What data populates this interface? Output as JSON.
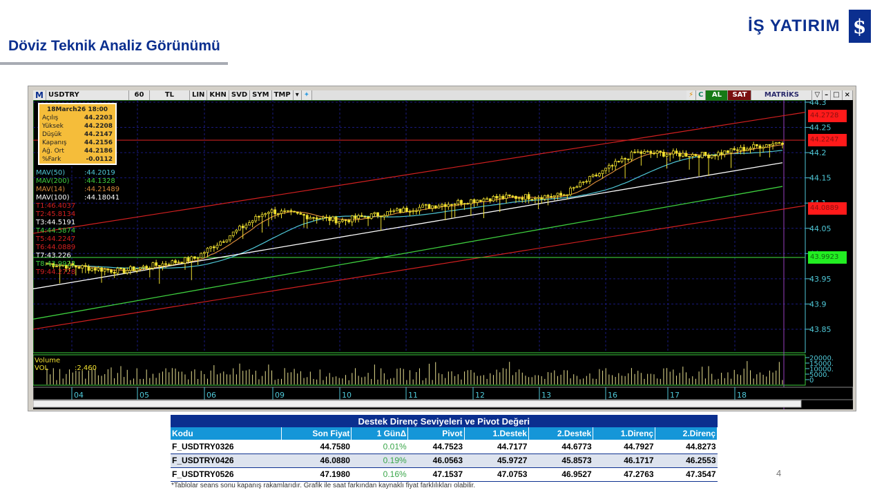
{
  "header": {
    "title": "Döviz Teknik Analiz Görünümü",
    "logo_text": "İŞ YATIRIM",
    "logo_mark": "$"
  },
  "toolbar": {
    "logo": "M",
    "symbol": "USDTRY",
    "period": "60",
    "currency": "TL",
    "buttons": [
      "LIN",
      "KHN",
      "SVD",
      "SYM",
      "TMP"
    ],
    "al": "AL",
    "sat": "SAT",
    "brand": "MATRİKS",
    "icons": [
      "lightning-icon",
      "refresh-icon",
      "twitter-icon",
      "dropdown-icon",
      "minimize-icon",
      "maximize-icon",
      "close-icon"
    ]
  },
  "infobox": {
    "date": "18March26 18:00",
    "rows": [
      [
        "Açılış",
        "44.2203"
      ],
      [
        "Yüksek",
        "44.2208"
      ],
      [
        "Düşük",
        "44.2147"
      ],
      [
        "Kapanış",
        "44.2156"
      ],
      [
        "Ağ. Ort",
        "44.2186"
      ],
      [
        "%Fark",
        "-0.0112"
      ]
    ]
  },
  "indicators": [
    {
      "label": "MAV(50)",
      "value": ":44.2019",
      "color": "#4fc8d8"
    },
    {
      "label": "MAV(200)",
      "value": ":44.1328",
      "color": "#3ecf3e"
    },
    {
      "label": "MAV(14)",
      "value": ":44.21489",
      "color": "#d88a3a"
    },
    {
      "label": "MAV(100)",
      "value": ":44.18041",
      "color": "#ffffff"
    },
    {
      "label": "T1:46.4037",
      "value": "",
      "color": "#d42020"
    },
    {
      "label": "T2:45.8134",
      "value": "",
      "color": "#d42020"
    },
    {
      "label": "T3:44.5191",
      "value": "",
      "color": "#ffffff"
    },
    {
      "label": "T4:44.5874",
      "value": "",
      "color": "#3ecf3e"
    },
    {
      "label": "T5:44.2247",
      "value": "",
      "color": "#d42020"
    },
    {
      "label": "T6:44.0889",
      "value": "",
      "color": "#d42020"
    },
    {
      "label": "T7:43.226",
      "value": "",
      "color": "#ffffff"
    },
    {
      "label": "T8:43.9923",
      "value": "",
      "color": "#3ecf3e"
    },
    {
      "label": "T9:44.2728",
      "value": "",
      "color": "#d42020"
    }
  ],
  "chart_data": {
    "type": "candlestick",
    "symbol": "USDTRY",
    "interval": "60",
    "ylim": [
      43.81,
      44.31
    ],
    "y_ticks": [
      "44.3",
      "44.25",
      "44.2",
      "44.15",
      "44.1",
      "44.05",
      "44.",
      "43.95",
      "43.9",
      "43.85"
    ],
    "x_labels": [
      "04",
      "05",
      "06",
      "09",
      "10",
      "11",
      "12",
      "13",
      "16",
      "17",
      "18"
    ],
    "close_anchors": [
      43.98,
      43.965,
      43.99,
      44.085,
      44.065,
      44.09,
      44.11,
      44.115,
      44.2,
      44.195,
      44.222
    ],
    "price_labels": [
      {
        "value": "44.2728",
        "color": "#ff1a1a"
      },
      {
        "value": "44.2247",
        "color": "#ff1a1a"
      },
      {
        "value": "44.0889",
        "color": "#ff1a1a"
      },
      {
        "value": "43.9923",
        "color": "#22ee22"
      }
    ],
    "horizontal_lines": [
      {
        "value": 44.2247,
        "color": "#c82020"
      },
      {
        "value": 43.9923,
        "color": "#3ecf3e"
      }
    ],
    "channel": {
      "upper": [
        44.04,
        44.28
      ],
      "lower": [
        43.85,
        44.095
      ]
    },
    "mav100": [
      43.93,
      44.18
    ],
    "mav200": [
      43.87,
      44.133
    ],
    "volume": {
      "label": "Volume",
      "series_label": "VOL",
      "value": ":2,460",
      "y_ticks": [
        "20000.",
        "15000.",
        "10000.",
        "5000.",
        "0"
      ]
    }
  },
  "table": {
    "caption": "Destek Direnç Seviyeleri ve Pivot Değeri",
    "columns": [
      "Kodu",
      "Son Fiyat",
      "1 GünΔ",
      "Pivot",
      "1.Destek",
      "2.Destek",
      "1.Direnç",
      "2.Direnç"
    ],
    "rows": [
      [
        "F_USDTRY0326",
        "44.7580",
        "0.01%",
        "44.7523",
        "44.7177",
        "44.6773",
        "44.7927",
        "44.8273"
      ],
      [
        "F_USDTRY0426",
        "46.0880",
        "0.19%",
        "46.0563",
        "45.9727",
        "45.8573",
        "46.1717",
        "46.2553"
      ],
      [
        "F_USDTRY0526",
        "47.1980",
        "0.16%",
        "47.1537",
        "47.0753",
        "46.9527",
        "47.2763",
        "47.3547"
      ]
    ]
  },
  "footnote": "*Tablolar seans sonu kapanış rakamlarıdır. Grafik ile saat farkından kaynaklı fiyat farklılıkları olabilir.",
  "page_number": "4"
}
